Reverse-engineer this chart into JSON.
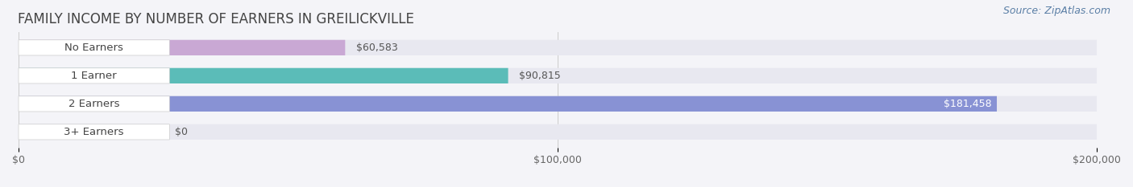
{
  "title": "FAMILY INCOME BY NUMBER OF EARNERS IN GREILICKVILLE",
  "source": "Source: ZipAtlas.com",
  "categories": [
    "No Earners",
    "1 Earner",
    "2 Earners",
    "3+ Earners"
  ],
  "values": [
    60583,
    90815,
    181458,
    0
  ],
  "bar_colors": [
    "#c9a8d4",
    "#5bbcb8",
    "#8892d4",
    "#f4a0b8"
  ],
  "xlim": [
    0,
    200000
  ],
  "xticks": [
    0,
    100000,
    200000
  ],
  "xtick_labels": [
    "$0",
    "$100,000",
    "$200,000"
  ],
  "value_labels": [
    "$60,583",
    "$90,815",
    "$181,458",
    "$0"
  ],
  "background_color": "#f4f4f8",
  "bar_bg_color": "#e8e8f0",
  "label_bg_color": "#ffffff",
  "bar_height": 0.55,
  "title_fontsize": 12,
  "label_fontsize": 9.5,
  "value_fontsize": 9,
  "tick_fontsize": 9,
  "source_fontsize": 9
}
